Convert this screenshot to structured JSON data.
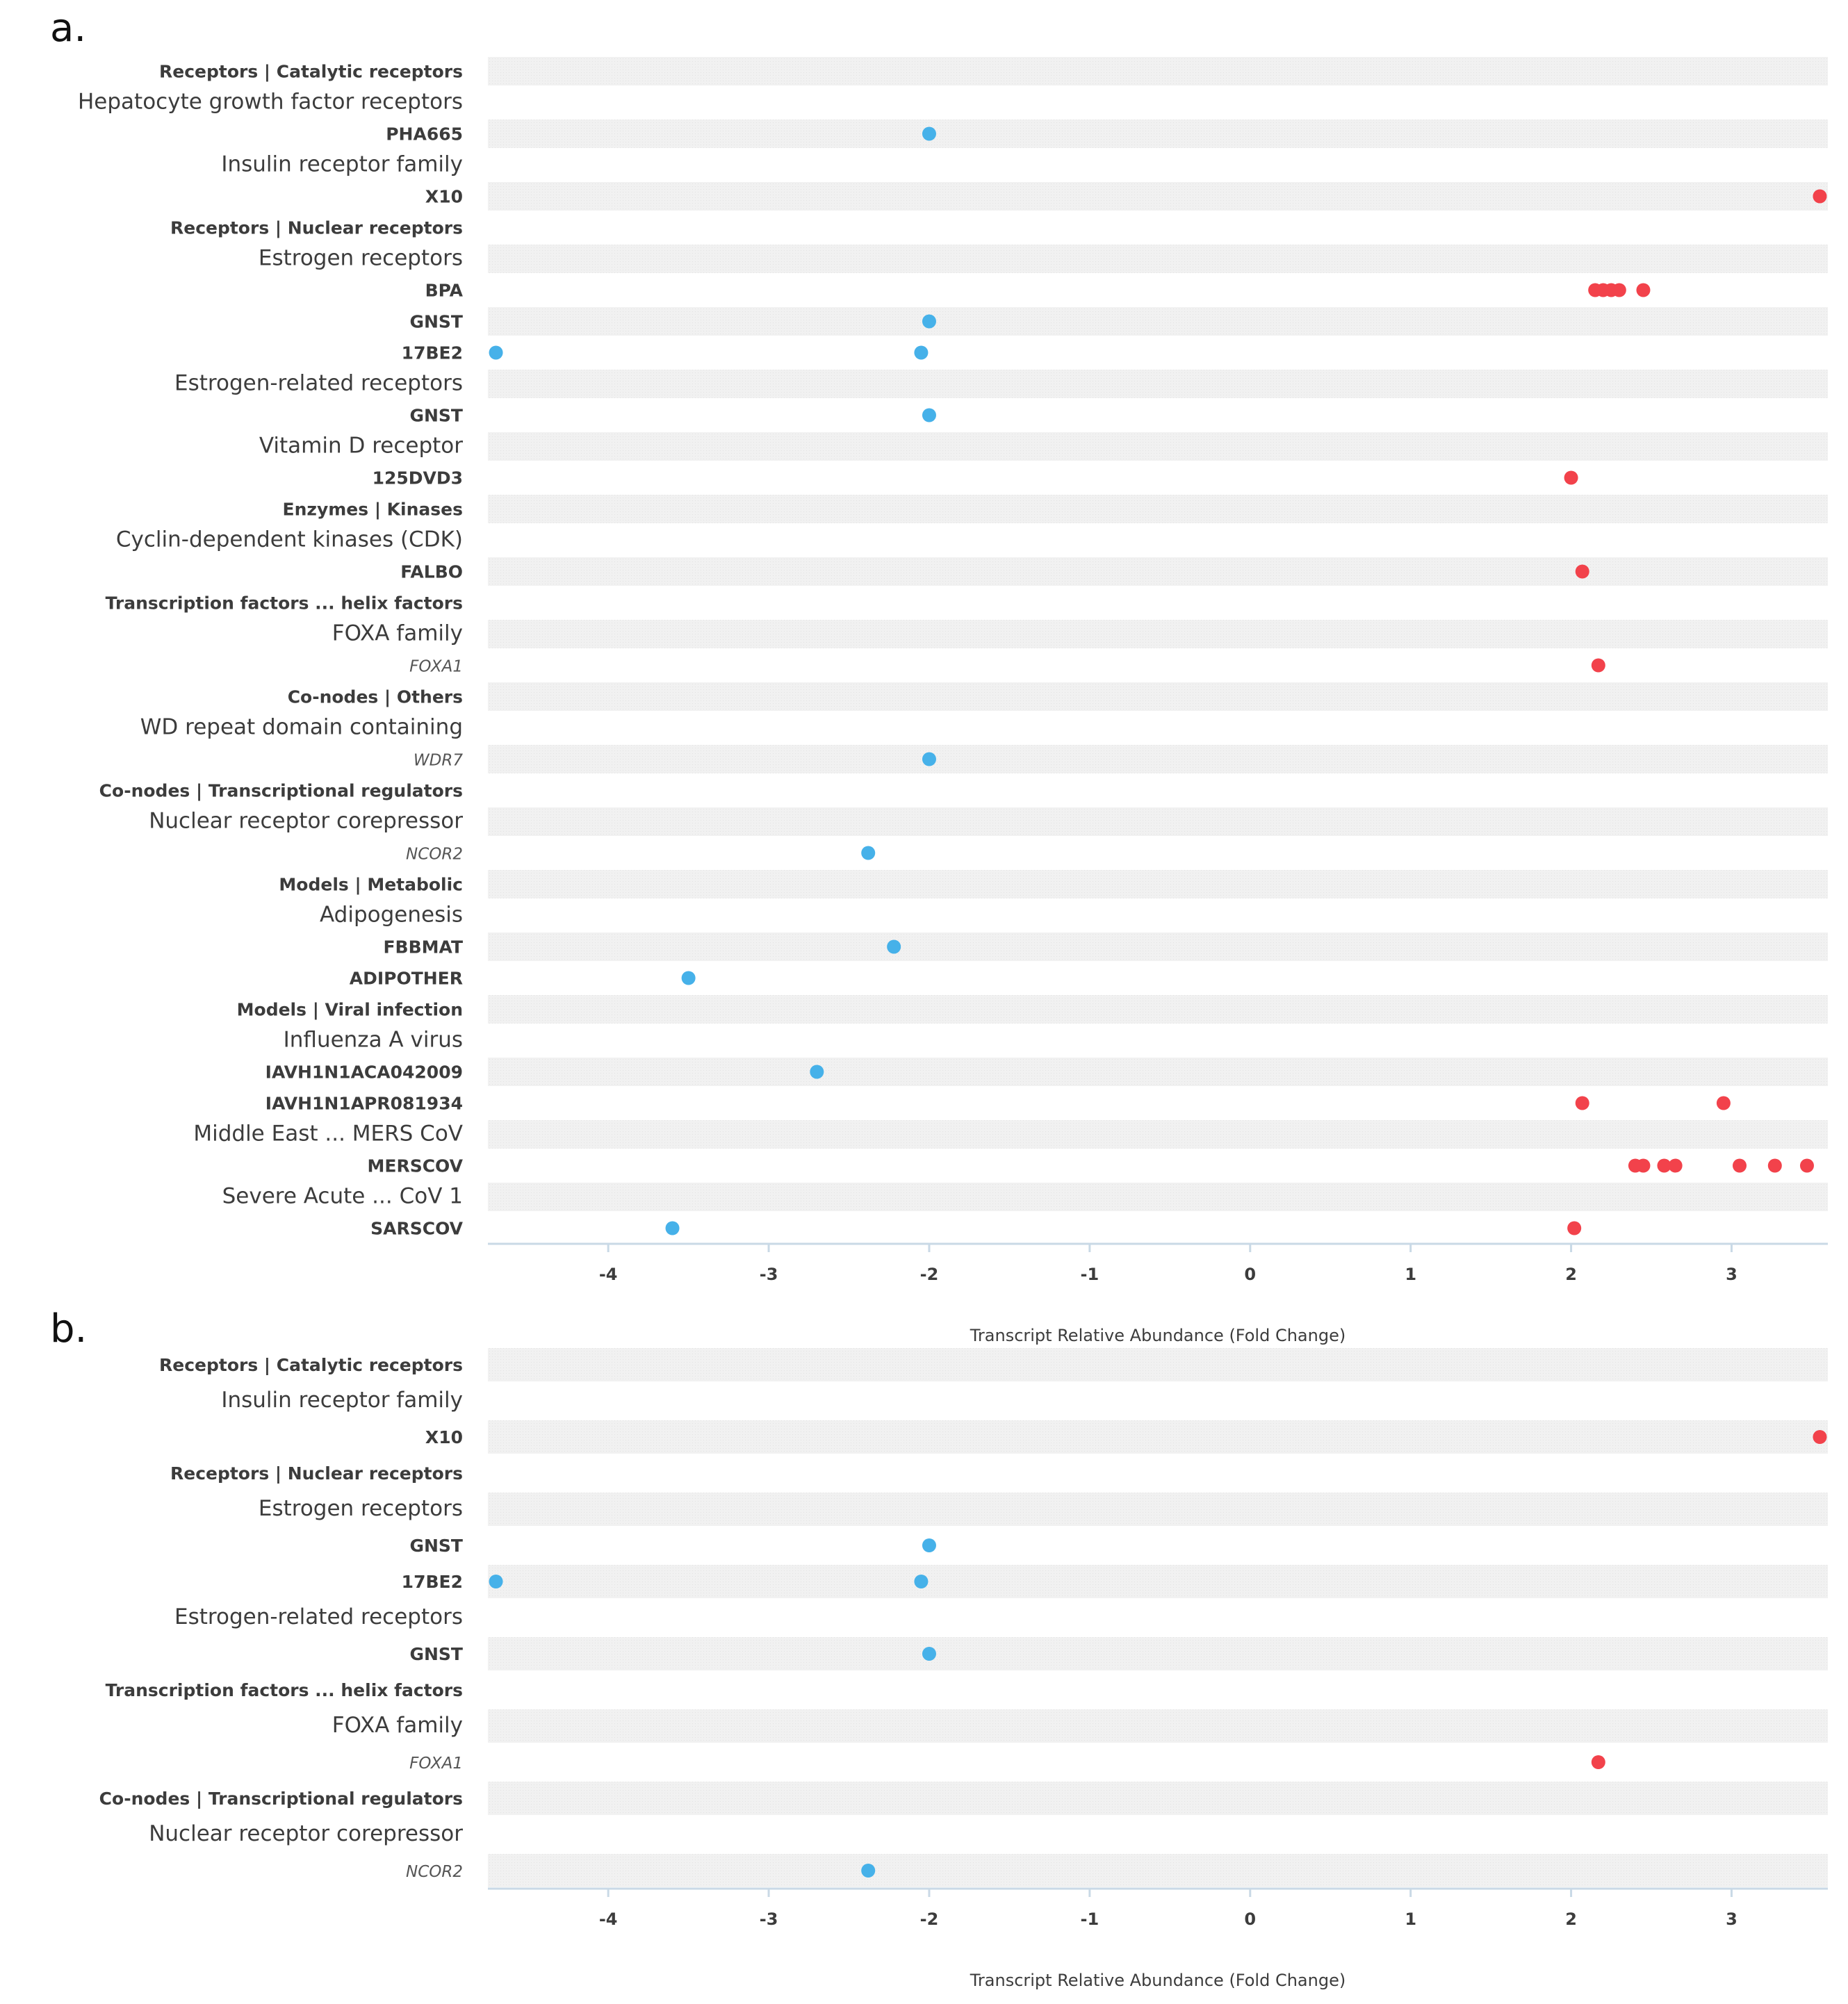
{
  "colors": {
    "up": "#f2424b",
    "down": "#46b1e9",
    "band": "#f1f1f1",
    "axis": "#c9d9e6",
    "text": "#3c3c3c"
  },
  "chart_data": [
    {
      "panel": "a.",
      "type": "scatter",
      "xlabel": "Transcript Relative Abundance (Fold Change)",
      "xlim": [
        -4.75,
        3.6
      ],
      "xticks": [
        -4,
        -3,
        -2,
        -1,
        0,
        1,
        2,
        3
      ],
      "xtick_labels": [
        "-4",
        "-3",
        "-2",
        "-1",
        "0",
        "1",
        "2",
        "3"
      ],
      "rows": [
        {
          "label": "Receptors | Catalytic receptors",
          "kind": "category",
          "points": []
        },
        {
          "label": "Hepatocyte growth factor receptors",
          "kind": "family",
          "points": []
        },
        {
          "label": "PHA665",
          "kind": "item",
          "points": [
            -2.0
          ]
        },
        {
          "label": "Insulin receptor family",
          "kind": "family",
          "points": []
        },
        {
          "label": "X10",
          "kind": "item",
          "points": [
            3.55
          ]
        },
        {
          "label": "Receptors | Nuclear receptors",
          "kind": "category",
          "points": []
        },
        {
          "label": "Estrogen receptors",
          "kind": "family",
          "points": []
        },
        {
          "label": "BPA",
          "kind": "item",
          "points": [
            2.15,
            2.2,
            2.25,
            2.3,
            2.45
          ]
        },
        {
          "label": "GNST",
          "kind": "item",
          "points": [
            -2.0
          ]
        },
        {
          "label": "17BE2",
          "kind": "item",
          "points": [
            -4.7,
            -2.05
          ]
        },
        {
          "label": "Estrogen-related receptors",
          "kind": "family",
          "points": []
        },
        {
          "label": "GNST",
          "kind": "item",
          "points": [
            -2.0
          ]
        },
        {
          "label": "Vitamin D receptor",
          "kind": "family",
          "points": []
        },
        {
          "label": "125DVD3",
          "kind": "item",
          "points": [
            2.0
          ]
        },
        {
          "label": "Enzymes | Kinases",
          "kind": "category",
          "points": []
        },
        {
          "label": "Cyclin-dependent kinases (CDK)",
          "kind": "family",
          "points": []
        },
        {
          "label": "FALBO",
          "kind": "item",
          "points": [
            2.07
          ]
        },
        {
          "label": "Transcription factors ... helix factors",
          "kind": "category",
          "points": []
        },
        {
          "label": "FOXA family",
          "kind": "family",
          "points": []
        },
        {
          "label": "FOXA1",
          "kind": "gene",
          "points": [
            2.17
          ]
        },
        {
          "label": "Co-nodes | Others",
          "kind": "category",
          "points": []
        },
        {
          "label": "WD repeat domain containing",
          "kind": "family",
          "points": []
        },
        {
          "label": "WDR7",
          "kind": "gene",
          "points": [
            -2.0
          ]
        },
        {
          "label": "Co-nodes | Transcriptional regulators",
          "kind": "category",
          "points": []
        },
        {
          "label": "Nuclear receptor corepressor",
          "kind": "family",
          "points": []
        },
        {
          "label": "NCOR2",
          "kind": "gene",
          "points": [
            -2.38
          ]
        },
        {
          "label": "Models | Metabolic",
          "kind": "category",
          "points": []
        },
        {
          "label": "Adipogenesis",
          "kind": "family",
          "points": []
        },
        {
          "label": "FBBMAT",
          "kind": "item",
          "points": [
            -2.22
          ]
        },
        {
          "label": "ADIPOTHER",
          "kind": "item",
          "points": [
            -3.5
          ]
        },
        {
          "label": "Models | Viral infection",
          "kind": "category",
          "points": []
        },
        {
          "label": "Influenza A virus",
          "kind": "family",
          "points": []
        },
        {
          "label": "IAVH1N1ACA042009",
          "kind": "item",
          "points": [
            -2.7
          ]
        },
        {
          "label": "IAVH1N1APR081934",
          "kind": "item",
          "points": [
            2.07,
            2.95
          ]
        },
        {
          "label": "Middle East ... MERS CoV",
          "kind": "family",
          "points": []
        },
        {
          "label": "MERSCOV",
          "kind": "item",
          "points": [
            2.4,
            2.45,
            2.58,
            2.65,
            3.05,
            3.27,
            3.47
          ]
        },
        {
          "label": "Severe Acute ... CoV 1",
          "kind": "family",
          "points": []
        },
        {
          "label": "SARSCOV",
          "kind": "item",
          "points": [
            -3.6,
            2.02
          ]
        }
      ]
    },
    {
      "panel": "b.",
      "type": "scatter",
      "xlabel": "Transcript Relative Abundance (Fold Change)",
      "xlim": [
        -4.75,
        3.6
      ],
      "xticks": [
        -4,
        -3,
        -2,
        -1,
        0,
        1,
        2,
        3
      ],
      "xtick_labels": [
        "-4",
        "-3",
        "-2",
        "-1",
        "0",
        "1",
        "2",
        "3"
      ],
      "rows": [
        {
          "label": "Receptors | Catalytic receptors",
          "kind": "category",
          "points": []
        },
        {
          "label": "Insulin receptor family",
          "kind": "family",
          "points": []
        },
        {
          "label": "X10",
          "kind": "item",
          "points": [
            3.55
          ]
        },
        {
          "label": "Receptors | Nuclear receptors",
          "kind": "category",
          "points": []
        },
        {
          "label": "Estrogen receptors",
          "kind": "family",
          "points": []
        },
        {
          "label": "GNST",
          "kind": "item",
          "points": [
            -2.0
          ]
        },
        {
          "label": "17BE2",
          "kind": "item",
          "points": [
            -4.7,
            -2.05
          ]
        },
        {
          "label": "Estrogen-related receptors",
          "kind": "family",
          "points": []
        },
        {
          "label": "GNST",
          "kind": "item",
          "points": [
            -2.0
          ]
        },
        {
          "label": "Transcription factors ... helix factors",
          "kind": "category",
          "points": []
        },
        {
          "label": "FOXA family",
          "kind": "family",
          "points": []
        },
        {
          "label": "FOXA1",
          "kind": "gene",
          "points": [
            2.17
          ]
        },
        {
          "label": "Co-nodes | Transcriptional regulators",
          "kind": "category",
          "points": []
        },
        {
          "label": "Nuclear receptor corepressor",
          "kind": "family",
          "points": []
        },
        {
          "label": "NCOR2",
          "kind": "gene",
          "points": [
            -2.38
          ]
        }
      ]
    }
  ]
}
